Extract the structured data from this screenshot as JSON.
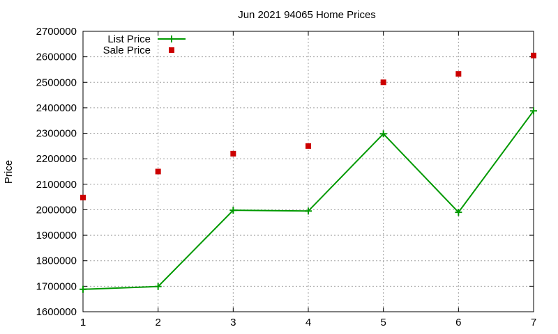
{
  "chart_data": {
    "type": "line",
    "title": "Jun 2021 94065 Home Prices",
    "xlabel": "",
    "ylabel": "Price",
    "x": [
      1,
      2,
      3,
      4,
      5,
      6,
      7
    ],
    "xlim": [
      1,
      7
    ],
    "ylim": [
      1600000,
      2700000
    ],
    "x_ticks": [
      "1",
      "2",
      "3",
      "4",
      "5",
      "6",
      "7"
    ],
    "y_ticks": [
      "1600000",
      "1700000",
      "1800000",
      "1900000",
      "2000000",
      "2100000",
      "2200000",
      "2300000",
      "2400000",
      "2500000",
      "2600000",
      "2700000"
    ],
    "grid": true,
    "legend_position": "top-left",
    "series": [
      {
        "name": "List Price",
        "style": "line-with-plus-markers",
        "color": "#009900",
        "values": [
          1688000,
          1699000,
          1998000,
          1995000,
          2298000,
          1990000,
          2388000
        ]
      },
      {
        "name": "Sale Price",
        "style": "square-markers",
        "color": "#cc0000",
        "values": [
          2048000,
          2150000,
          2220000,
          2250000,
          2500000,
          2533000,
          2605000
        ]
      }
    ]
  }
}
